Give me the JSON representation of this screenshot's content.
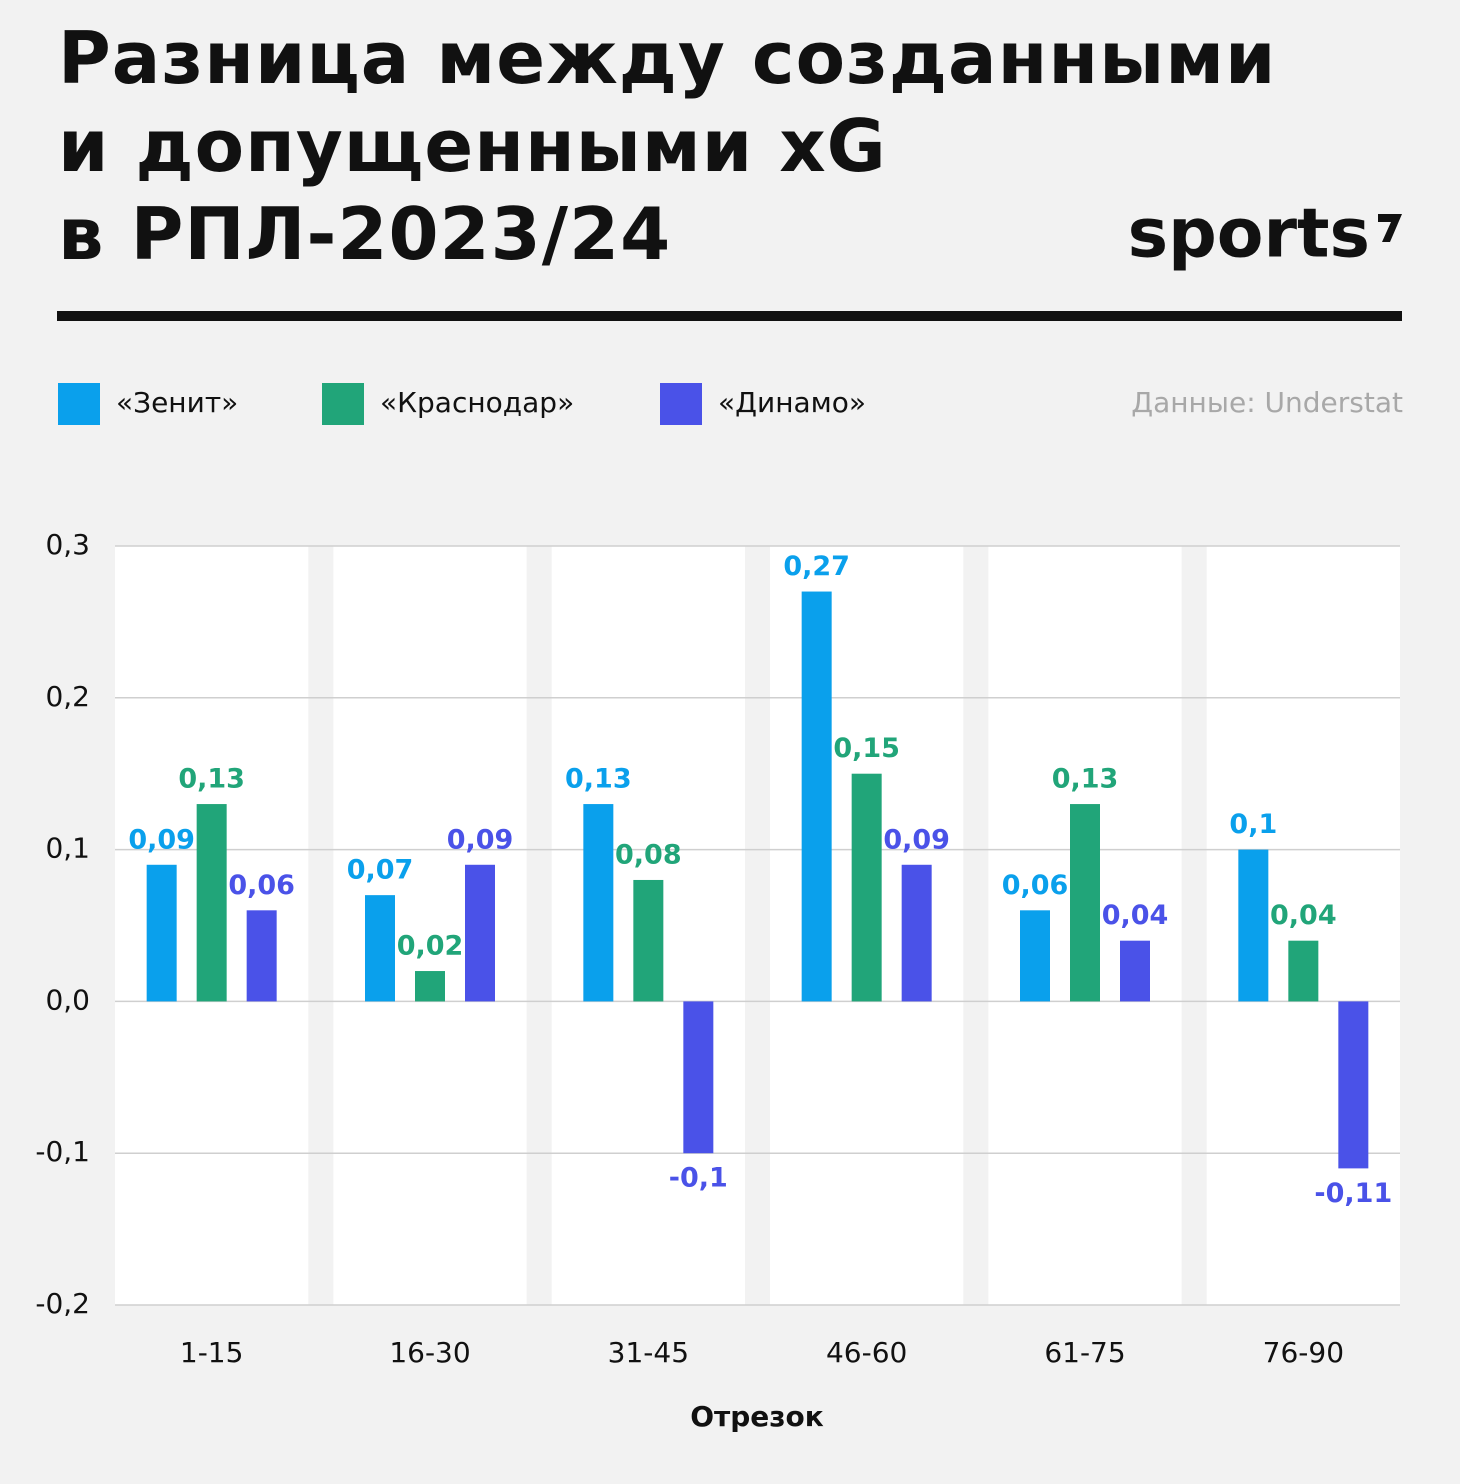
{
  "chart_data": {
    "type": "bar",
    "title": "Разница между созданными\nи допущенными xG\nв РПЛ-2023/24",
    "brand": "sports",
    "source": "Данные: Understat",
    "x_label": "Отрезок",
    "categories": [
      "1-15",
      "16-30",
      "31-45",
      "46-60",
      "61-75",
      "76-90"
    ],
    "series": [
      {
        "name": "«Зенит»",
        "color": "#0aa0ec",
        "values": [
          0.09,
          0.07,
          0.13,
          0.27,
          0.06,
          0.1
        ],
        "value_labels": [
          "0,09",
          "0,07",
          "0,13",
          "0,27",
          "0,06",
          "0,1"
        ]
      },
      {
        "name": "«Краснодар»",
        "color": "#21a579",
        "values": [
          0.13,
          0.02,
          0.08,
          0.15,
          0.13,
          0.04
        ],
        "value_labels": [
          "0,13",
          "0,02",
          "0,08",
          "0,15",
          "0,13",
          "0,04"
        ]
      },
      {
        "name": "«Динамо»",
        "color": "#4a52e8",
        "values": [
          0.06,
          0.09,
          -0.1,
          0.09,
          0.04,
          -0.11
        ],
        "value_labels": [
          "0,06",
          "0,09",
          "-0,1",
          "0,09",
          "0,04",
          "-0,11"
        ]
      }
    ],
    "ylim": [
      -0.2,
      0.3
    ],
    "yticks": [
      {
        "value": 0.3,
        "label": "0,3"
      },
      {
        "value": 0.2,
        "label": "0,2"
      },
      {
        "value": 0.1,
        "label": "0,1"
      },
      {
        "value": 0,
        "label": "0,0"
      },
      {
        "value": -0.1,
        "label": "-0,1"
      },
      {
        "value": -0.2,
        "label": "-0,2"
      }
    ],
    "grid": true
  }
}
